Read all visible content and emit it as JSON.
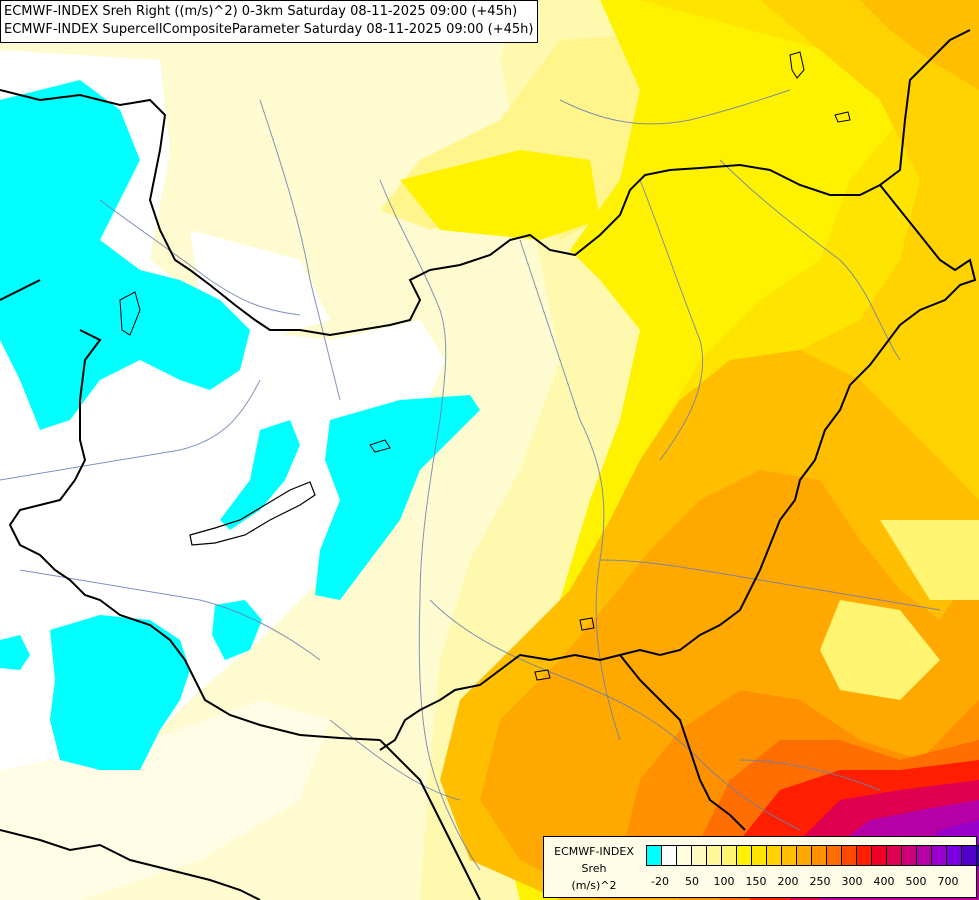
{
  "title_lines": [
    "ECMWF-INDEX Sreh Right ((m/s)^2) 0-3km Saturday 08-11-2025 09:00 (+45h)",
    "ECMWF-INDEX SupercellCompositeParameter Saturday 08-11-2025 09:00 (+45h)"
  ],
  "legend": {
    "line1": "ECMWF-INDEX",
    "line2": "Sreh",
    "line3": "(m/s)^2",
    "colors": [
      "#00ffff",
      "#ffffff",
      "#fffde0",
      "#fffac0",
      "#fff79a",
      "#fff570",
      "#fff200",
      "#ffe400",
      "#ffd200",
      "#ffbe00",
      "#ffa800",
      "#ff9000",
      "#ff6e00",
      "#ff4a00",
      "#ff1e00",
      "#f00028",
      "#e00050",
      "#cc007a",
      "#b400a6",
      "#9a00cc",
      "#7a00e0",
      "#5000c8",
      "#2c00a8",
      "#0c0064"
    ],
    "ticks": [
      "-20",
      "50",
      "100",
      "150",
      "200",
      "250",
      "300",
      "400",
      "500",
      "700"
    ]
  }
}
